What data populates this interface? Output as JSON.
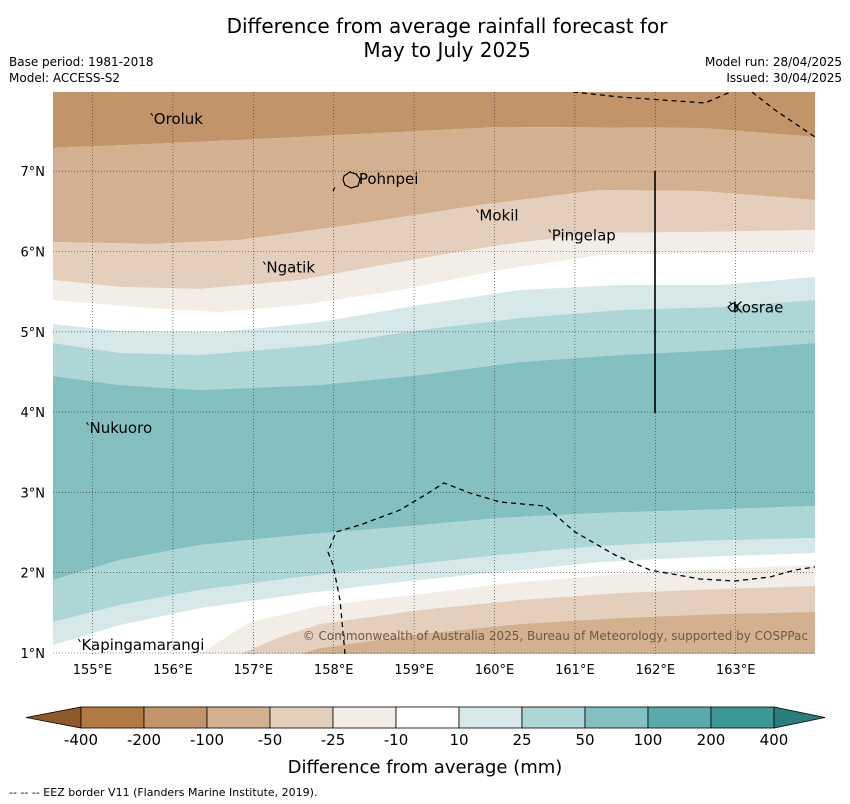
{
  "title_line1": "Difference from average rainfall forecast for",
  "title_line2": "May to July 2025",
  "meta_left": [
    "Base period: 1981-2018",
    "Model: ACCESS-S2"
  ],
  "meta_right": [
    "Model run: 28/04/2025",
    "Issued: 30/04/2025"
  ],
  "lat_labels": [
    "7°N",
    "6°N",
    "5°N",
    "4°N",
    "3°N",
    "2°N",
    "1°N"
  ],
  "lat_values": [
    7,
    6,
    5,
    4,
    3,
    2,
    1
  ],
  "lon_labels": [
    "155°E",
    "156°E",
    "157°E",
    "158°E",
    "159°E",
    "160°E",
    "161°E",
    "162°E",
    "163°E"
  ],
  "lon_values": [
    155,
    156,
    157,
    158,
    159,
    160,
    161,
    162,
    163
  ],
  "places": [
    {
      "name": "Oroluk",
      "lon": 155.75,
      "lat": 7.65
    },
    {
      "name": "Pohnpei",
      "lon": 158.3,
      "lat": 6.9
    },
    {
      "name": "Mokil",
      "lon": 159.8,
      "lat": 6.45
    },
    {
      "name": "Pingelap",
      "lon": 160.7,
      "lat": 6.2
    },
    {
      "name": "Ngatik",
      "lon": 157.15,
      "lat": 5.8
    },
    {
      "name": "Kosrae",
      "lon": 162.95,
      "lat": 5.3
    },
    {
      "name": "Nukuoro",
      "lon": 154.95,
      "lat": 3.8
    },
    {
      "name": "Kapingamarangi",
      "lon": 154.85,
      "lat": 1.1
    }
  ],
  "copyright": "© Commonwealth of Australia 2025, Bureau of Meteorology, supported by COSPPac",
  "colorbar": {
    "ticks": [
      "-400",
      "-200",
      "-100",
      "-50",
      "-25",
      "-10",
      "10",
      "25",
      "50",
      "100",
      "200",
      "400"
    ],
    "colors": [
      "#b07a42",
      "#c19569",
      "#d3b190",
      "#e3cfbc",
      "#f2ede6",
      "#ffffff",
      "#d6e9e8",
      "#add7d6",
      "#84c0c0",
      "#59aaa8",
      "#3b9896"
    ],
    "under_color": "#8f5a2a",
    "over_color": "#2a7f7c",
    "label": "Difference from average (mm)"
  },
  "footer": "-- -- -- EEZ border V11 (Flanders Marine Institute, 2019)."
}
